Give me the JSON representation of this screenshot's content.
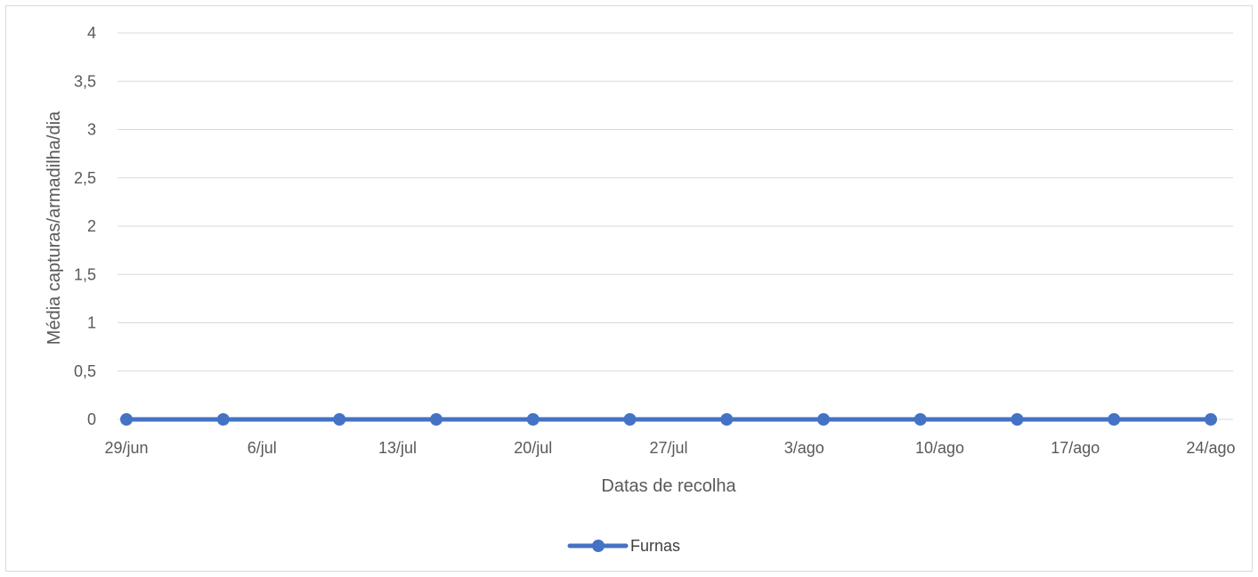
{
  "chart_data": {
    "type": "line",
    "title": "",
    "xlabel": "Datas de recolha",
    "ylabel": "Média capturas/armadilha/dia",
    "x": [
      "29/jun",
      "4/jul",
      "10/jul",
      "15/jul",
      "20/jul",
      "25/jul",
      "30/jul",
      "4/ago",
      "9/ago",
      "14/ago",
      "19/ago",
      "24/ago"
    ],
    "x_point_dates": [
      "2021-06-29",
      "2021-07-04",
      "2021-07-10",
      "2021-07-15",
      "2021-07-20",
      "2021-07-25",
      "2021-07-30",
      "2021-08-04",
      "2021-08-09",
      "2021-08-14",
      "2021-08-19",
      "2021-08-24"
    ],
    "x_ticks": [
      "29/jun",
      "6/jul",
      "13/jul",
      "20/jul",
      "27/jul",
      "3/ago",
      "10/ago",
      "17/ago",
      "24/ago"
    ],
    "series": [
      {
        "name": "Furnas",
        "values": [
          0,
          0,
          0,
          0,
          0,
          0,
          0,
          0,
          0,
          0,
          0,
          0
        ],
        "color": "#4472c4"
      }
    ],
    "ylim": [
      0,
      4
    ],
    "y_ticks": [
      "0",
      "0,5",
      "1",
      "1,5",
      "2",
      "2,5",
      "3",
      "3,5",
      "4"
    ],
    "grid": "horizontal",
    "legend_position": "bottom"
  }
}
